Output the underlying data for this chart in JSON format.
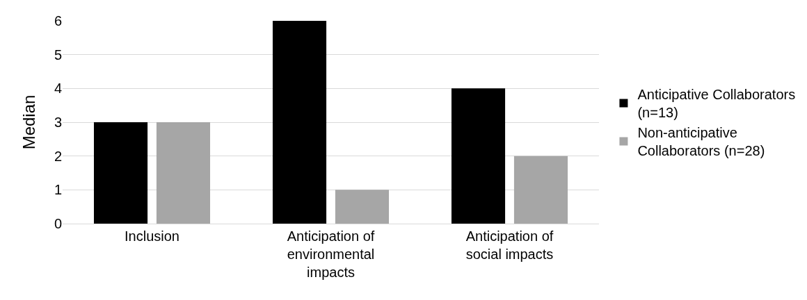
{
  "chart_data": {
    "type": "bar",
    "ylabel": "Median",
    "categories": [
      "Inclusion",
      "Anticipation of environmental impacts",
      "Anticipation of social impacts"
    ],
    "series": [
      {
        "name": "Anticipative Collaborators (n=13)",
        "color": "#000000",
        "values": [
          3,
          6,
          4
        ]
      },
      {
        "name": "Non-anticipative Collaborators (n=28)",
        "color": "#a6a6a6",
        "values": [
          3,
          1,
          2
        ]
      }
    ],
    "ylim": [
      0,
      6
    ],
    "yticks": [
      0,
      1,
      2,
      3,
      4,
      5,
      6
    ],
    "grid": "y",
    "legend": "right"
  }
}
